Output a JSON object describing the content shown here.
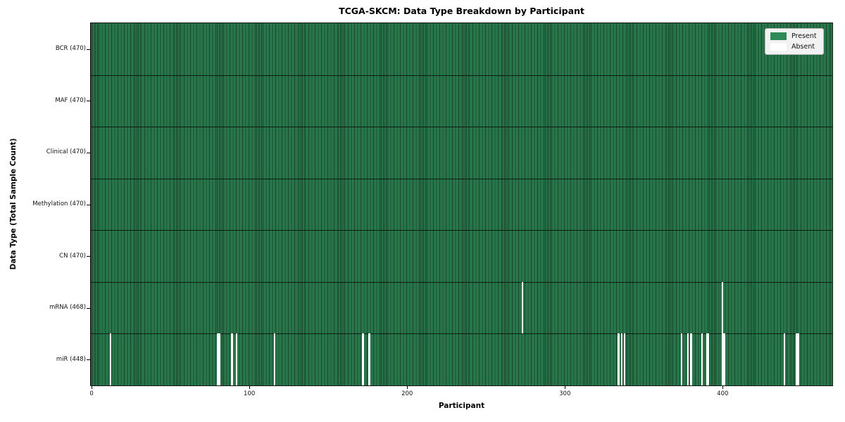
{
  "title": "TCGA-SKCM: Data Type Breakdown by Participant",
  "axes": {
    "xlabel": "Participant",
    "ylabel": "Data Type (Total Sample Count)"
  },
  "legend": {
    "present_label": "Present",
    "absent_label": "Absent"
  },
  "colors": {
    "present": "#2e8b57",
    "cell_edge": "#14321f",
    "absent": "#ffffff",
    "row_divider": "#0a1e10",
    "axis_text": "#000000",
    "legend_bg": "#f2f2f2",
    "legend_border": "#b6b6b6"
  },
  "chart_data": {
    "type": "heatmap",
    "title": "TCGA-SKCM: Data Type Breakdown by Participant",
    "xlabel": "Participant",
    "ylabel": "Data Type (Total Sample Count)",
    "legend_entries": [
      "Present",
      "Absent"
    ],
    "legend_position": "upper right",
    "grid": false,
    "n_participants": 470,
    "x_ticks": [
      0,
      100,
      200,
      300,
      400
    ],
    "x_range": [
      -0.5,
      469.5
    ],
    "rows": [
      {
        "label": "BCR (470)",
        "data_type": "BCR",
        "present_count": 470,
        "absent_indices": []
      },
      {
        "label": "MAF (470)",
        "data_type": "MAF",
        "present_count": 470,
        "absent_indices": []
      },
      {
        "label": "Clinical (470)",
        "data_type": "Clinical",
        "present_count": 470,
        "absent_indices": []
      },
      {
        "label": "Methylation (470)",
        "data_type": "Methylation",
        "present_count": 470,
        "absent_indices": []
      },
      {
        "label": "CN (470)",
        "data_type": "CN",
        "present_count": 470,
        "absent_indices": []
      },
      {
        "label": "mRNA (468)",
        "data_type": "mRNA",
        "present_count": 468,
        "absent_indices": [
          273,
          400
        ]
      },
      {
        "label": "miR (448)",
        "data_type": "miR",
        "present_count": 448,
        "absent_indices": [
          12,
          80,
          81,
          89,
          92,
          116,
          172,
          176,
          334,
          336,
          338,
          374,
          378,
          380,
          387,
          390,
          391,
          400,
          401,
          439,
          447,
          448
        ]
      }
    ]
  }
}
